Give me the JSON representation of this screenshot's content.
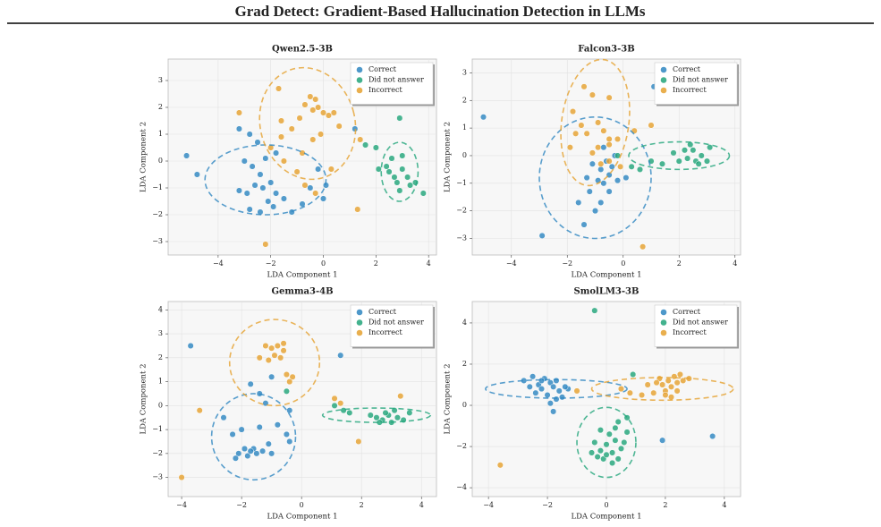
{
  "title": "Grad Detect: Gradient-Based Hallucination Detection in LLMs",
  "chart_data": [
    {
      "type": "scatter",
      "title": "Qwen2.5-3B",
      "x_label": "LDA Component 1",
      "y_label": "LDA Component 2",
      "grid": true,
      "legend": "upper right",
      "xlim": [
        -5.9,
        4.3
      ],
      "ylim": [
        -3.5,
        3.8
      ],
      "xticks": [
        {
          "value": -4,
          "label": "−4"
        },
        {
          "value": -2,
          "label": "−2"
        },
        0,
        2,
        4
      ],
      "yticks": [
        {
          "value": -3,
          "label": "−3"
        },
        {
          "value": -2,
          "label": "−2"
        },
        {
          "value": -1,
          "label": "−1"
        },
        0,
        1,
        2,
        3
      ],
      "series": [
        {
          "name": "Correct",
          "color": "#2e86c1",
          "x": [
            -5.2,
            -4.8,
            -3.2,
            -2.8,
            -2.5,
            -3.0,
            -2.2,
            -1.8,
            -2.7,
            -2.4,
            -3.2,
            -2.9,
            -2.6,
            -2.3,
            -2.0,
            -1.8,
            -1.5,
            -2.1,
            -2.8,
            -2.4,
            -1.2,
            -0.8,
            -0.5,
            0.1,
            -0.2,
            0.0,
            1.2,
            -1.9
          ],
          "y": [
            0.2,
            -0.5,
            1.2,
            1.0,
            0.7,
            0,
            0.1,
            0.3,
            -0.2,
            -0.5,
            -1.1,
            -1.2,
            -0.9,
            -1.0,
            -0.8,
            -1.2,
            -1.4,
            -1.5,
            -1.8,
            -1.9,
            -1.9,
            -1.6,
            -1.0,
            -0.9,
            -0.3,
            -1.4,
            1.2,
            -1.7
          ],
          "ellipse": {
            "cx": -2.2,
            "cy": -0.7,
            "rx": 2.3,
            "ry": 1.3,
            "angle": 0
          }
        },
        {
          "name": "Did not answer",
          "color": "#22a57a",
          "x": [
            1.6,
            2.0,
            2.1,
            2.4,
            2.6,
            2.7,
            2.8,
            3.0,
            3.2,
            3.0,
            3.3,
            3.5,
            3.8,
            2.9,
            2.5,
            2.9
          ],
          "y": [
            0.6,
            0.5,
            -0.3,
            -0.2,
            0.1,
            -0.6,
            -0.8,
            -0.3,
            -0.6,
            0.2,
            -0.9,
            -0.8,
            -1.2,
            -1.1,
            -0.4,
            1.6
          ],
          "ellipse": {
            "cx": 2.9,
            "cy": -0.4,
            "rx": 0.7,
            "ry": 1.1,
            "angle": 0
          }
        },
        {
          "name": "Incorrect",
          "color": "#e5a12f",
          "x": [
            -1.7,
            -3.2,
            -1.6,
            -0.9,
            -0.5,
            -0.3,
            -0.4,
            0.0,
            0.2,
            0.4,
            -0.2,
            -0.7,
            -1.2,
            -0.1,
            -0.4,
            0.6,
            1.4,
            -1.6,
            -2.0,
            -1.5,
            -1.0,
            -0.7,
            -0.3,
            0.3,
            -2.2,
            1.3,
            -0.8
          ],
          "y": [
            2.7,
            1.8,
            1.5,
            1.6,
            2.4,
            2.3,
            1.9,
            1.8,
            1.7,
            1.8,
            2.0,
            2.1,
            1.2,
            1.0,
            0.8,
            1.3,
            0.8,
            0.9,
            0.5,
            0.0,
            -0.4,
            -0.9,
            -1.2,
            -0.3,
            -3.1,
            -1.8,
            0.3
          ],
          "ellipse": {
            "cx": -0.6,
            "cy": 1.4,
            "rx": 1.8,
            "ry": 2.1,
            "angle": -15
          }
        }
      ]
    },
    {
      "type": "scatter",
      "title": "Falcon3-3B",
      "x_label": "LDA Component 1",
      "y_label": "LDA Component 2",
      "grid": true,
      "legend": "upper right",
      "xlim": [
        -5.4,
        4.2
      ],
      "ylim": [
        -3.6,
        3.5
      ],
      "xticks": [
        {
          "value": -4,
          "label": "−4"
        },
        {
          "value": -2,
          "label": "−2"
        },
        0,
        2,
        4
      ],
      "yticks": [
        {
          "value": -3,
          "label": "−3"
        },
        {
          "value": -2,
          "label": "−2"
        },
        {
          "value": -1,
          "label": "−1"
        },
        0,
        1,
        2,
        3
      ],
      "series": [
        {
          "name": "Correct",
          "color": "#2e86c1",
          "x": [
            -5.0,
            -2.9,
            1.1,
            -1.4,
            -1.0,
            -0.8,
            -1.2,
            -1.6,
            -0.9,
            -0.7,
            -0.5,
            -0.4,
            -0.8,
            -0.6,
            -0.3,
            -0.7,
            -0.2,
            0.1,
            -1.3,
            -1.1,
            -0.5
          ],
          "y": [
            1.4,
            -2.9,
            2.5,
            -2.5,
            -2.0,
            -1.7,
            -1.3,
            -1.7,
            -0.9,
            -1.0,
            -0.7,
            -0.4,
            -0.5,
            -0.2,
            0.0,
            0.3,
            -0.9,
            -0.8,
            -0.8,
            -0.3,
            -1.3
          ],
          "ellipse": {
            "cx": -1.0,
            "cy": -0.8,
            "rx": 2.0,
            "ry": 2.2,
            "angle": 0
          }
        },
        {
          "name": "Did not answer",
          "color": "#22a57a",
          "x": [
            -0.2,
            0.3,
            0.6,
            1.0,
            1.4,
            1.8,
            2.0,
            2.2,
            2.4,
            2.5,
            2.6,
            2.8,
            3.0,
            2.7,
            3.1,
            2.3
          ],
          "y": [
            0.0,
            -0.4,
            -0.5,
            -0.2,
            -0.3,
            0.1,
            -0.2,
            0.2,
            0.4,
            0.2,
            -0.2,
            0.0,
            -0.2,
            -0.3,
            0.3,
            -0.1
          ],
          "ellipse": {
            "cx": 2.0,
            "cy": 0.0,
            "rx": 1.8,
            "ry": 0.5,
            "angle": 0
          }
        },
        {
          "name": "Incorrect",
          "color": "#e5a12f",
          "x": [
            -1.4,
            -1.1,
            -0.5,
            -1.8,
            -1.5,
            -1.7,
            -1.3,
            -0.9,
            -0.7,
            -0.5,
            -0.2,
            -0.5,
            -0.9,
            -1.1,
            -1.9,
            -0.5,
            0.4,
            1.0,
            0.7,
            -0.1,
            -0.8
          ],
          "y": [
            2.5,
            2.2,
            2.1,
            1.6,
            1.1,
            0.8,
            0.8,
            1.2,
            0.9,
            0.6,
            0.6,
            0.4,
            0.3,
            0.1,
            0.3,
            -0.2,
            0.9,
            1.1,
            -3.3,
            -0.4,
            -0.3
          ],
          "ellipse": {
            "cx": -1.0,
            "cy": 1.2,
            "rx": 1.2,
            "ry": 2.3,
            "angle": 8
          }
        }
      ]
    },
    {
      "type": "scatter",
      "title": "Gemma3-4B",
      "x_label": "LDA Component 1",
      "y_label": "LDA Component 2",
      "grid": true,
      "legend": "upper right",
      "xlim": [
        -4.45,
        4.5
      ],
      "ylim": [
        -3.8,
        4.35
      ],
      "xticks": [
        {
          "value": -4,
          "label": "−4"
        },
        {
          "value": -2,
          "label": "−2"
        },
        0,
        2,
        4
      ],
      "yticks": [
        {
          "value": -3,
          "label": "−3"
        },
        {
          "value": -2,
          "label": "−2"
        },
        {
          "value": -1,
          "label": "−1"
        },
        0,
        1,
        2,
        3,
        4
      ],
      "series": [
        {
          "name": "Correct",
          "color": "#2e86c1",
          "x": [
            -3.7,
            -1.0,
            -1.7,
            -1.4,
            -1.2,
            -0.4,
            -2.6,
            -2.0,
            -1.4,
            -0.8,
            -0.5,
            -2.3,
            -2.1,
            -1.9,
            -1.8,
            -1.6,
            -1.5,
            -1.3,
            -2.2,
            -1.7,
            -1.0,
            -0.4,
            1.3,
            -1.1
          ],
          "y": [
            2.5,
            1.2,
            0.9,
            0.5,
            0.1,
            -0.2,
            -0.5,
            -1.0,
            -0.9,
            -0.8,
            -1.2,
            -1.2,
            -2.0,
            -1.8,
            -2.1,
            -1.8,
            -2.0,
            -1.9,
            -2.2,
            -1.9,
            -2.0,
            -1.5,
            2.1,
            -1.6
          ],
          "ellipse": {
            "cx": -1.6,
            "cy": -1.3,
            "rx": 1.4,
            "ry": 1.8,
            "angle": 0
          }
        },
        {
          "name": "Did not answer",
          "color": "#22a57a",
          "x": [
            -0.5,
            1.1,
            1.4,
            1.6,
            2.3,
            2.5,
            2.7,
            2.9,
            3.0,
            3.2,
            3.4,
            3.6,
            2.8,
            2.6,
            3.1
          ],
          "y": [
            0.6,
            0.0,
            -0.2,
            -0.3,
            -0.4,
            -0.5,
            -0.6,
            -0.4,
            -0.7,
            -0.5,
            -0.6,
            -0.3,
            -0.3,
            -0.7,
            -0.2
          ],
          "ellipse": {
            "cx": 2.5,
            "cy": -0.4,
            "rx": 1.8,
            "ry": 0.3,
            "angle": 0
          }
        },
        {
          "name": "Incorrect",
          "color": "#e5a12f",
          "x": [
            -4.0,
            -3.4,
            -1.2,
            -1.0,
            -0.8,
            -0.6,
            -0.9,
            -0.7,
            -1.4,
            -1.1,
            -0.5,
            -0.3,
            -0.4,
            1.1,
            1.3,
            1.9,
            3.3,
            -0.6
          ],
          "y": [
            -3.0,
            -0.2,
            2.5,
            2.4,
            2.5,
            2.3,
            2.1,
            2.0,
            2.0,
            1.9,
            1.3,
            1.2,
            1.0,
            0.3,
            0.1,
            -1.5,
            0.4,
            2.6
          ],
          "ellipse": {
            "cx": -0.9,
            "cy": 1.8,
            "rx": 1.5,
            "ry": 1.8,
            "angle": 0
          }
        }
      ]
    },
    {
      "type": "scatter",
      "title": "SmolLM3-3B",
      "x_label": "LDA Component 1",
      "y_label": "LDA Component 2",
      "grid": true,
      "legend": "upper right",
      "xlim": [
        -4.55,
        4.55
      ],
      "ylim": [
        -4.43,
        5.04
      ],
      "xticks": [
        {
          "value": -4,
          "label": "−4"
        },
        {
          "value": -2,
          "label": "−2"
        },
        0,
        2,
        4
      ],
      "yticks": [
        {
          "value": -4,
          "label": "−4"
        },
        {
          "value": -2,
          "label": "−2"
        },
        0,
        2,
        4
      ],
      "series": [
        {
          "name": "Correct",
          "color": "#2e86c1",
          "x": [
            -2.8,
            -2.5,
            -2.3,
            -2.1,
            -1.9,
            -1.7,
            -2.4,
            -2.2,
            -2.0,
            -1.8,
            -1.6,
            -1.3,
            -1.5,
            -1.9,
            -1.8,
            -2.6,
            -2.2,
            -1.4,
            1.9,
            3.6,
            -1.7
          ],
          "y": [
            1.2,
            1.4,
            1.0,
            1.3,
            1.1,
            1.2,
            0.6,
            0.8,
            0.5,
            0.9,
            0.7,
            0.8,
            0.4,
            0.1,
            -0.3,
            0.9,
            1.2,
            0.9,
            -1.7,
            -1.5,
            0.3
          ],
          "ellipse": {
            "cx": -1.7,
            "cy": 0.8,
            "rx": 2.4,
            "ry": 0.45,
            "angle": 0
          }
        },
        {
          "name": "Did not answer",
          "color": "#22a57a",
          "x": [
            -0.4,
            0.9,
            0.7,
            0.4,
            -0.2,
            0.1,
            0.3,
            -0.4,
            0.0,
            0.3,
            0.6,
            -0.2,
            0.2,
            0.5,
            -0.5,
            -0.1,
            0.2,
            0.4,
            -0.3,
            0.0,
            0.7
          ],
          "y": [
            4.6,
            1.5,
            -0.6,
            -0.8,
            -1.2,
            -1.4,
            -1.1,
            -1.8,
            -1.9,
            -1.7,
            -1.8,
            -2.2,
            -2.3,
            -2.1,
            -2.3,
            -2.6,
            -2.8,
            -2.6,
            -2.5,
            -2.4,
            -1.3
          ],
          "ellipse": {
            "cx": 0.0,
            "cy": -1.8,
            "rx": 1.0,
            "ry": 1.7,
            "angle": 0
          }
        },
        {
          "name": "Incorrect",
          "color": "#e5a12f",
          "x": [
            -3.6,
            -1.0,
            0.5,
            1.2,
            1.4,
            1.6,
            1.8,
            1.9,
            2.0,
            2.1,
            2.2,
            2.3,
            2.4,
            2.5,
            2.6,
            2.4,
            2.0,
            1.7,
            2.8,
            2.2,
            0.8
          ],
          "y": [
            -2.9,
            0.7,
            0.8,
            0.5,
            1.0,
            0.6,
            1.3,
            1.0,
            0.7,
            1.2,
            0.9,
            1.4,
            1.1,
            1.5,
            1.2,
            0.7,
            0.5,
            1.1,
            1.3,
            0.4,
            0.6
          ],
          "ellipse": {
            "cx": 1.9,
            "cy": 0.8,
            "rx": 2.4,
            "ry": 0.55,
            "angle": 0
          }
        }
      ]
    }
  ]
}
